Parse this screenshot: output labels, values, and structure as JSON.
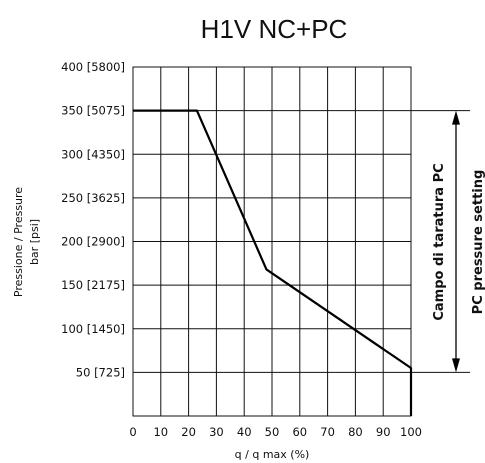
{
  "chart_data": {
    "type": "line",
    "title": "H1V NC+PC",
    "xlabel": "q / q max (%)",
    "ylabel_lines": [
      "Pressione / Pressure",
      "bar [psi]"
    ],
    "x_ticks": [
      "0",
      "10",
      "20",
      "30",
      "40",
      "50",
      "60",
      "70",
      "80",
      "90",
      "100"
    ],
    "y_ticks": [
      "400 [5800]",
      "350 [5075]",
      "300 [4350]",
      "250 [3625]",
      "200 [2900]",
      "150 [2175]",
      "100 [1450]",
      "50 [725]"
    ],
    "xlim": [
      0,
      100
    ],
    "ylim": [
      0,
      400
    ],
    "grid": true,
    "series": [
      {
        "x": [
          0,
          23,
          48,
          100,
          100
        ],
        "y": [
          350,
          350,
          168,
          55,
          0
        ]
      }
    ],
    "annotation": {
      "range_y": [
        50,
        350
      ],
      "label_it": "Campo di taratura PC",
      "label_en": "PC pressure setting"
    }
  }
}
